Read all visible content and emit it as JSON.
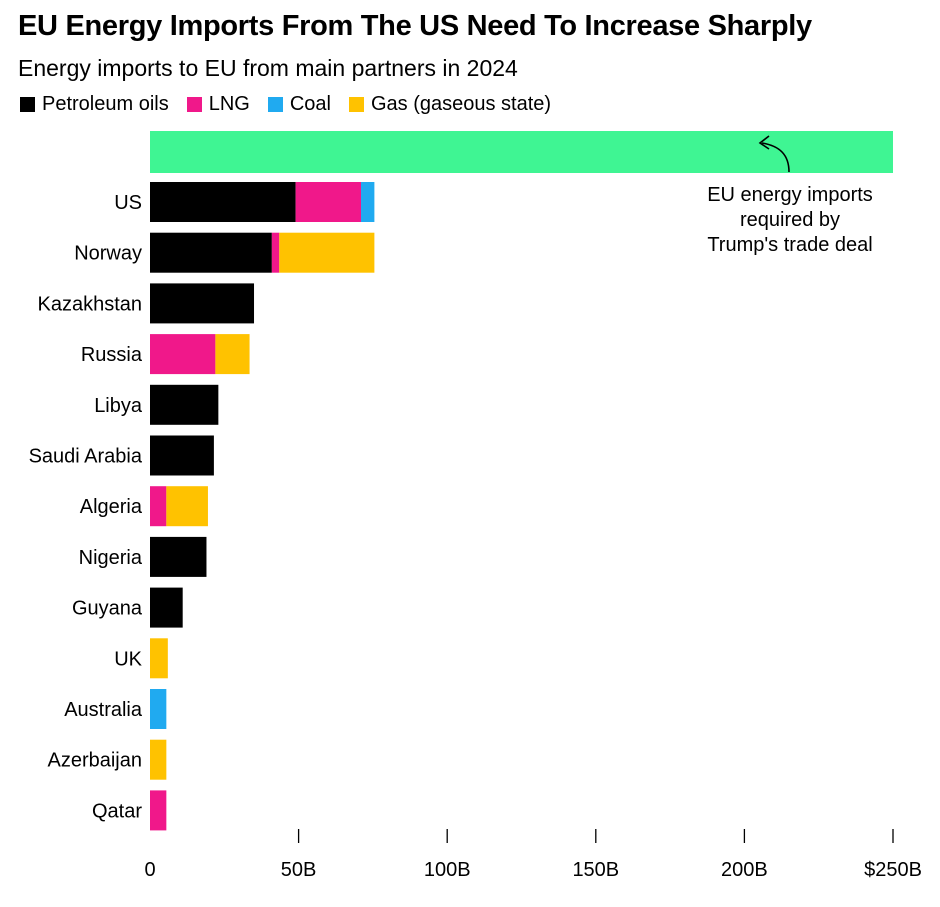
{
  "header": {
    "title": "EU Energy Imports From The US Need To Increase Sharply",
    "subtitle": "Energy imports to EU from main partners in 2024"
  },
  "colors": {
    "petroleum": "#000000",
    "lng": "#f0188a",
    "coal": "#20aaf0",
    "gas": "#ffc200",
    "target": "#3ff593",
    "axis": "#000000"
  },
  "chart_data": {
    "type": "bar",
    "orientation": "horizontal",
    "stacked": true,
    "categories": [
      "US",
      "Norway",
      "Kazakhstan",
      "Russia",
      "Libya",
      "Saudi Arabia",
      "Algeria",
      "Nigeria",
      "Guyana",
      "UK",
      "Australia",
      "Azerbaijan",
      "Qatar"
    ],
    "series": [
      {
        "name": "Petroleum oils",
        "color_key": "petroleum",
        "values": [
          49,
          41,
          35,
          0,
          23,
          21.5,
          0,
          19,
          11,
          0,
          0,
          0,
          0
        ]
      },
      {
        "name": "LNG",
        "color_key": "lng",
        "values": [
          22,
          2.5,
          0,
          22,
          0,
          0,
          5.5,
          0,
          0,
          0,
          0,
          0,
          5.5
        ]
      },
      {
        "name": "Coal",
        "color_key": "coal",
        "values": [
          4.5,
          0,
          0,
          0,
          0,
          0,
          0,
          0,
          0,
          0,
          5.5,
          0,
          0
        ]
      },
      {
        "name": "Gas (gaseous state)",
        "color_key": "gas",
        "values": [
          0,
          32,
          0,
          11.5,
          0,
          0,
          14,
          0,
          0,
          6,
          0,
          5.5,
          0
        ]
      }
    ],
    "target": {
      "value": 250,
      "annotation": "EU energy imports required by Trump's trade deal",
      "annotation_lines": [
        "EU energy imports",
        "required by",
        "Trump's trade deal"
      ]
    },
    "xlim": [
      0,
      250
    ],
    "xticks": [
      0,
      50,
      100,
      150,
      200,
      250
    ],
    "xtick_labels": [
      "0",
      "50B",
      "100B",
      "150B",
      "200B",
      "$250B"
    ],
    "xlabel": "",
    "ylabel": "",
    "grid": false,
    "legend": "top-left"
  }
}
